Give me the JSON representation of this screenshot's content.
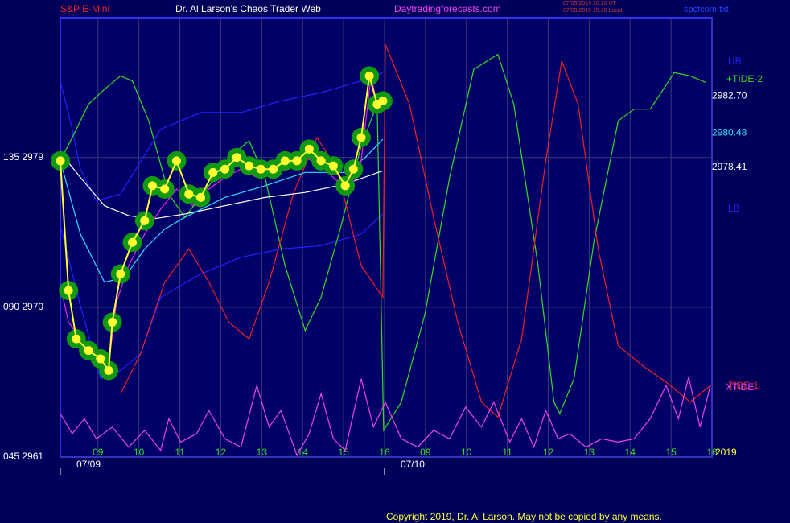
{
  "header": {
    "symbol": "S&P E-Mini",
    "site": "Dr. Al Larson's Chaos Trader Web",
    "url": "Daytradingforecasts.com",
    "stamp_ut": "07/09/2019 20:20 UT",
    "stamp_local": "07/09/2019 15:20 Local",
    "file": "spcfcom.txt"
  },
  "copyright": "Copyright 2019, Dr. Al Larson. May not be copied by any means.",
  "chart_data": {
    "type": "line",
    "xlim": [
      8.08,
      24
    ],
    "ylim": [
      2961,
      2987.4
    ],
    "grid": true,
    "xticks": [
      {
        "value": 9,
        "label": "09"
      },
      10,
      11,
      12,
      13,
      14,
      15,
      16,
      {
        "value": 17,
        "label": "09"
      },
      {
        "value": 18,
        "label": "10"
      },
      {
        "value": 19,
        "label": "11"
      },
      {
        "value": 20,
        "label": "12"
      },
      {
        "value": 21,
        "label": "13"
      },
      {
        "value": 22,
        "label": "14"
      },
      {
        "value": 23,
        "label": "15"
      },
      {
        "value": 24,
        "label": "16"
      }
    ],
    "date_ticks": [
      {
        "value": 8.08,
        "label": "07/09"
      },
      {
        "value": 16,
        "label": "07/10"
      }
    ],
    "yticks": [
      {
        "value": 2961,
        "label": "045 2961"
      },
      {
        "value": 2970,
        "label": "090 2970"
      },
      {
        "value": 2979,
        "label": "135 2979"
      }
    ],
    "year_label": "2019",
    "price_labels": [
      {
        "value": 2982.7,
        "label": "2982.70",
        "color": "#ffffff"
      },
      {
        "value": 2980.48,
        "label": "2980.48",
        "color": "#33ddff"
      },
      {
        "value": 2978.41,
        "label": "2978.41",
        "color": "#ffffff"
      }
    ],
    "series": [
      {
        "name": "UB",
        "color": "#2222ff",
        "x": [
          8.08,
          8.37,
          8.57,
          8.96,
          9.55,
          10.53,
          11.51,
          12.49,
          13.47,
          14.45,
          15.43,
          15.96
        ],
        "values": [
          2983.6,
          2980.7,
          2978.3,
          2976.4,
          2976.8,
          2980.7,
          2981.7,
          2981.7,
          2982.4,
          2982.9,
          2983.6,
          2984.1
        ]
      },
      {
        "name": "LB",
        "color": "#2222ff",
        "x": [
          8.08,
          8.57,
          9.06,
          9.55,
          10.04,
          10.53,
          11.51,
          12.49,
          13.47,
          14.45,
          15.43,
          15.96
        ],
        "values": [
          2974.9,
          2970.1,
          2965.7,
          2966.2,
          2967.2,
          2970.6,
          2972.0,
          2973.0,
          2973.5,
          2973.7,
          2974.4,
          2975.6
        ]
      },
      {
        "name": "+TIDE-2",
        "color": "#33dd22",
        "x": [
          8.08,
          8.37,
          8.77,
          9.16,
          9.55,
          9.84,
          10.24,
          10.73,
          11.12,
          11.71,
          12.2,
          12.69,
          13.08,
          13.57,
          14.06,
          14.45,
          14.94,
          15.43,
          15.82,
          15.98,
          16.41,
          16.99,
          17.59,
          18.18,
          18.77,
          19.16,
          19.75,
          20.14,
          20.28,
          20.63,
          21.12,
          21.71,
          22.1,
          22.49,
          23.08,
          23.47,
          23.86
        ],
        "values": [
          2978.8,
          2980.2,
          2982.2,
          2983.1,
          2983.9,
          2983.6,
          2981.2,
          2976.8,
          2975.4,
          2977.3,
          2979.0,
          2980.0,
          2977.8,
          2972.5,
          2968.6,
          2970.6,
          2974.9,
          2979.7,
          2982.2,
          2962.6,
          2964.3,
          2969.6,
          2977.8,
          2984.3,
          2985.2,
          2982.2,
          2972.5,
          2964.3,
          2963.6,
          2965.7,
          2974.0,
          2981.2,
          2981.9,
          2981.9,
          2984.1,
          2983.9,
          2983.5
        ]
      },
      {
        "name": "TIDE-1",
        "color": "#ee2222",
        "x": [
          9.55,
          10.04,
          10.63,
          11.22,
          11.71,
          12.2,
          12.69,
          13.18,
          13.77,
          14.35,
          14.84,
          15.43,
          15.96,
          16.02,
          16.61,
          17.2,
          17.79,
          18.37,
          18.77,
          19.35,
          19.94,
          20.33,
          20.73,
          21.22,
          21.71,
          22.3,
          22.88,
          23.47,
          23.96
        ],
        "values": [
          2964.8,
          2967.2,
          2971.5,
          2973.5,
          2971.5,
          2969.1,
          2968.1,
          2971.5,
          2976.8,
          2980.2,
          2978.3,
          2972.5,
          2970.6,
          2985.8,
          2982.2,
          2975.4,
          2969.1,
          2964.3,
          2963.4,
          2968.1,
          2978.8,
          2984.8,
          2982.2,
          2973.5,
          2967.7,
          2966.5,
          2965.5,
          2964.3,
          2965.3
        ]
      },
      {
        "name": "XTIDE",
        "color": "#ee44ee",
        "x": [
          8.08,
          8.37,
          8.67,
          8.96,
          9.35,
          9.75,
          10.14,
          10.53,
          10.73,
          11.02,
          11.41,
          11.71,
          12.1,
          12.49,
          12.88,
          13.18,
          13.47,
          13.86,
          14.16,
          14.45,
          14.75,
          15.04,
          15.43,
          15.73,
          16.02,
          16.41,
          16.81,
          17.2,
          17.59,
          17.98,
          18.37,
          18.67,
          19.06,
          19.35,
          19.65,
          19.94,
          20.24,
          20.53,
          20.92,
          21.31,
          21.7,
          22.1,
          22.49,
          22.88,
          23.18,
          23.43,
          23.71,
          23.96
        ],
        "values": [
          2963.6,
          2962.4,
          2963.3,
          2962.1,
          2962.8,
          2961.6,
          2962.6,
          2961.4,
          2963.3,
          2961.9,
          2962.4,
          2963.8,
          2962.1,
          2961.6,
          2965.3,
          2962.8,
          2963.8,
          2961.1,
          2962.4,
          2964.8,
          2962.1,
          2961.4,
          2965.7,
          2962.8,
          2964.3,
          2962.1,
          2961.6,
          2962.6,
          2962.1,
          2964.0,
          2962.8,
          2964.3,
          2961.9,
          2963.3,
          2961.6,
          2963.8,
          2962.1,
          2962.4,
          2961.6,
          2962.1,
          2961.9,
          2962.1,
          2963.3,
          2965.3,
          2963.3,
          2965.8,
          2962.8,
          2965.3
        ]
      },
      {
        "color": "#ffffff",
        "x": [
          8.08,
          8.57,
          9.16,
          9.75,
          10.33,
          11.12,
          12.1,
          13.08,
          14.06,
          15.04,
          15.96
        ],
        "values": [
          2979.3,
          2977.8,
          2976.1,
          2975.5,
          2975.3,
          2975.6,
          2976.1,
          2976.6,
          2976.9,
          2977.4,
          2978.2
        ]
      },
      {
        "color": "#33ddff",
        "x": [
          8.08,
          8.57,
          9.16,
          9.65,
          10.14,
          10.63,
          11.12,
          12.1,
          13.08,
          14.06,
          15.04,
          15.53,
          15.96
        ],
        "values": [
          2978.8,
          2974.4,
          2971.5,
          2971.8,
          2973.5,
          2974.7,
          2975.4,
          2976.6,
          2977.3,
          2978.1,
          2978.1,
          2979.0,
          2980.1
        ]
      },
      {
        "color": "#ee22ee",
        "x": [
          8.08,
          8.28,
          8.57,
          8.96,
          9.26,
          9.45,
          9.75,
          10.14,
          10.53,
          10.92,
          11.31,
          11.71,
          12.1,
          12.49,
          12.88,
          13.28,
          13.67,
          14.06,
          14.45,
          14.84,
          15.14,
          15.43,
          15.67,
          15.86,
          15.96
        ],
        "values": [
          2971.3,
          2969.1,
          2968.1,
          2966.9,
          2966.5,
          2970.3,
          2972.5,
          2974.4,
          2975.9,
          2977.1,
          2976.1,
          2977.1,
          2977.8,
          2978.3,
          2977.8,
          2978.1,
          2978.3,
          2979.0,
          2978.5,
          2977.6,
          2976.8,
          2978.8,
          2983.9,
          2981.7,
          2982.2
        ]
      },
      {
        "color": "#ffff33",
        "marker": true,
        "x": [
          8.08,
          8.28,
          8.47,
          8.77,
          9.06,
          9.26,
          9.35,
          9.55,
          9.84,
          10.14,
          10.33,
          10.63,
          10.92,
          11.22,
          11.51,
          11.81,
          12.1,
          12.39,
          12.69,
          12.98,
          13.28,
          13.57,
          13.86,
          14.16,
          14.45,
          14.75,
          15.04,
          15.24,
          15.43,
          15.63,
          15.82,
          15.96
        ],
        "values": [
          2978.8,
          2971.0,
          2968.1,
          2967.4,
          2966.9,
          2966.2,
          2969.1,
          2972.0,
          2973.9,
          2975.2,
          2977.3,
          2977.1,
          2978.8,
          2976.8,
          2976.6,
          2978.1,
          2978.3,
          2979.0,
          2978.5,
          2978.3,
          2978.3,
          2978.8,
          2978.8,
          2979.5,
          2978.8,
          2978.5,
          2977.3,
          2978.3,
          2980.2,
          2983.9,
          2982.2,
          2982.4
        ]
      }
    ]
  }
}
